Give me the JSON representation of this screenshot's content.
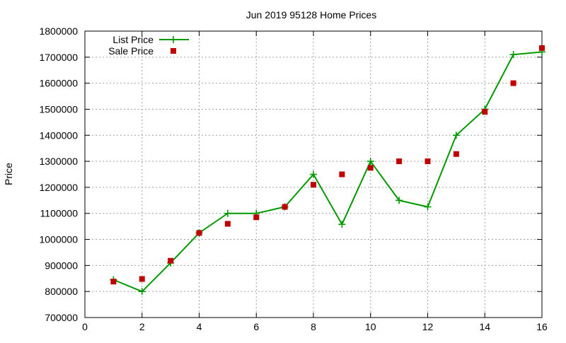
{
  "chart_data": {
    "type": "line",
    "title": "Jun 2019 95128 Home Prices",
    "xlabel": "",
    "ylabel": "Price",
    "xlim": [
      0,
      16
    ],
    "ylim": [
      700000,
      1800000
    ],
    "x_ticks": [
      0,
      2,
      4,
      6,
      8,
      10,
      12,
      14,
      16
    ],
    "y_ticks": [
      700000,
      800000,
      900000,
      1000000,
      1100000,
      1200000,
      1300000,
      1400000,
      1500000,
      1600000,
      1700000,
      1800000
    ],
    "grid": true,
    "legend_position": "top-left",
    "series": [
      {
        "name": "List Price",
        "style": "line-with-plus-markers",
        "color": "#009900",
        "points": [
          {
            "x": 1,
            "y": 845000
          },
          {
            "x": 2,
            "y": 800000
          },
          {
            "x": 3,
            "y": 910000
          },
          {
            "x": 4,
            "y": 1025000
          },
          {
            "x": 5,
            "y": 1100000
          },
          {
            "x": 6,
            "y": 1100000
          },
          {
            "x": 7,
            "y": 1125000
          },
          {
            "x": 8,
            "y": 1250000
          },
          {
            "x": 9,
            "y": 1058000
          },
          {
            "x": 10,
            "y": 1300000
          },
          {
            "x": 11,
            "y": 1150000
          },
          {
            "x": 12,
            "y": 1125000
          },
          {
            "x": 13,
            "y": 1400000
          },
          {
            "x": 14,
            "y": 1500000
          },
          {
            "x": 15,
            "y": 1710000
          },
          {
            "x": 16,
            "y": 1720000
          }
        ]
      },
      {
        "name": "Sale Price",
        "style": "square-markers",
        "color": "#c00000",
        "points": [
          {
            "x": 1,
            "y": 838000
          },
          {
            "x": 2,
            "y": 848000
          },
          {
            "x": 3,
            "y": 918000
          },
          {
            "x": 4,
            "y": 1025000
          },
          {
            "x": 5,
            "y": 1060000
          },
          {
            "x": 6,
            "y": 1085000
          },
          {
            "x": 7,
            "y": 1125000
          },
          {
            "x": 8,
            "y": 1210000
          },
          {
            "x": 9,
            "y": 1250000
          },
          {
            "x": 10,
            "y": 1275000
          },
          {
            "x": 11,
            "y": 1300000
          },
          {
            "x": 12,
            "y": 1300000
          },
          {
            "x": 13,
            "y": 1328000
          },
          {
            "x": 14,
            "y": 1490000
          },
          {
            "x": 15,
            "y": 1600000
          },
          {
            "x": 16,
            "y": 1735000
          }
        ]
      }
    ]
  }
}
